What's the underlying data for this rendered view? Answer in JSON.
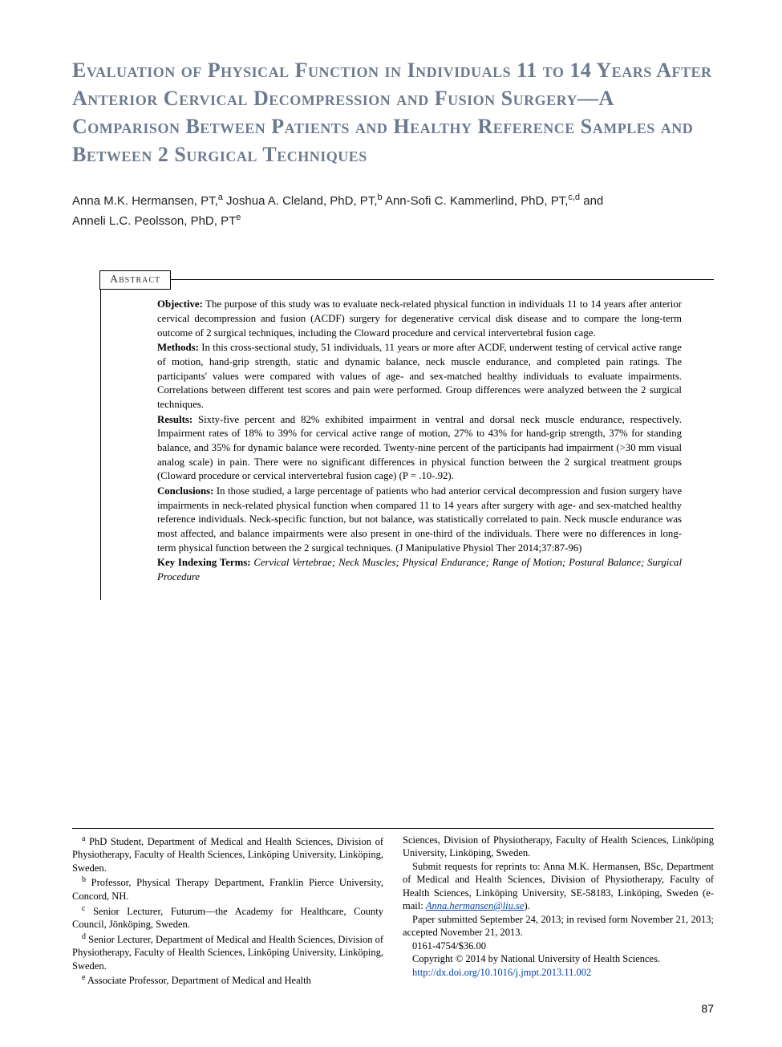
{
  "title": "Evaluation of Physical Function in Individuals 11 to 14 Years After Anterior Cervical Decompression and Fusion Surgery—A Comparison Between Patients and Healthy Reference Samples and Between 2 Surgical Techniques",
  "authors_line1": "Anna M.K. Hermansen, PT,",
  "author1_sup": "a",
  "author2": " Joshua A. Cleland, PhD, PT,",
  "author2_sup": "b",
  "author3": " Ann-Sofi C. Kammerlind, PhD, PT,",
  "author3_sup": "c,d",
  "author4_and": " and",
  "author4": "Anneli L.C. Peolsson, PhD, PT",
  "author4_sup": "e",
  "abstract_label": "Abstract",
  "abstract": {
    "objective_label": "Objective:",
    "objective": " The purpose of this study was to evaluate neck-related physical function in individuals 11 to 14 years after anterior cervical decompression and fusion (ACDF) surgery for degenerative cervical disk disease and to compare the long-term outcome of 2 surgical techniques, including the Cloward procedure and cervical intervertebral fusion cage.",
    "methods_label": "Methods:",
    "methods": " In this cross-sectional study, 51 individuals, 11 years or more after ACDF, underwent testing of cervical active range of motion, hand-grip strength, static and dynamic balance, neck muscle endurance, and completed pain ratings. The participants' values were compared with values of age- and sex-matched healthy individuals to evaluate impairments. Correlations between different test scores and pain were performed. Group differences were analyzed between the 2 surgical techniques.",
    "results_label": "Results:",
    "results": " Sixty-five percent and 82% exhibited impairment in ventral and dorsal neck muscle endurance, respectively. Impairment rates of 18% to 39% for cervical active range of motion, 27% to 43% for hand-grip strength, 37% for standing balance, and 35% for dynamic balance were recorded. Twenty-nine percent of the participants had impairment (>30 mm visual analog scale) in pain. There were no significant differences in physical function between the 2 surgical treatment groups (Cloward procedure or cervical intervertebral fusion cage) (P = .10-.92).",
    "conclusions_label": "Conclusions:",
    "conclusions": " In those studied, a large percentage of patients who had anterior cervical decompression and fusion surgery have impairments in neck-related physical function when compared 11 to 14 years after surgery with age- and sex-matched healthy reference individuals. Neck-specific function, but not balance, was statistically correlated to pain. Neck muscle endurance was most affected, and balance impairments were also present in one-third of the individuals. There were no differences in long-term physical function between the 2 surgical techniques. (J Manipulative Physiol Ther 2014;37:87-96)",
    "keywords_label": "Key Indexing Terms:",
    "keywords": " Cervical Vertebrae; Neck Muscles; Physical Endurance; Range of Motion; Postural Balance; Surgical Procedure"
  },
  "affiliations": {
    "a_sup": "a",
    "a": " PhD Student, Department of Medical and Health Sciences, Division of Physiotherapy, Faculty of Health Sciences, Linköping University, Linköping, Sweden.",
    "b_sup": "b",
    "b": " Professor, Physical Therapy Department, Franklin Pierce University, Concord, NH.",
    "c_sup": "c",
    "c": " Senior Lecturer, Futurum—the Academy for Healthcare, County Council, Jönköping, Sweden.",
    "d_sup": "d",
    "d": " Senior Lecturer, Department of Medical and Health Sciences, Division of Physiotherapy, Faculty of Health Sciences, Linköping University, Linköping, Sweden.",
    "e_sup": "e",
    "e": " Associate Professor, Department of Medical and Health ",
    "e_cont": "Sciences, Division of Physiotherapy, Faculty of Health Sciences, Linköping University, Linköping, Sweden.",
    "reprint": "Submit requests for reprints to: Anna M.K. Hermansen, BSc, Department of Medical and Health Sciences, Division of Physiotherapy, Faculty of Health Sciences, Linköping University, SE-58183, Linköping, Sweden (e-mail: ",
    "email": "Anna.hermansen@liu.se",
    "reprint_end": ").",
    "submitted": "Paper submitted September 24, 2013; in revised form November 21, 2013; accepted November 21, 2013.",
    "issn": "0161-4754/$36.00",
    "copyright": "Copyright © 2014 by National University of Health Sciences.",
    "doi": "http://dx.doi.org/10.1016/j.jmpt.2013.11.002"
  },
  "page_number": "87",
  "colors": {
    "title": "#6b7a8f",
    "text": "#000000",
    "link": "#0645ad",
    "background": "#ffffff"
  },
  "typography": {
    "title_fontsize": 26,
    "authors_fontsize": 15,
    "abstract_fontsize": 12.8,
    "footer_fontsize": 12.5
  }
}
